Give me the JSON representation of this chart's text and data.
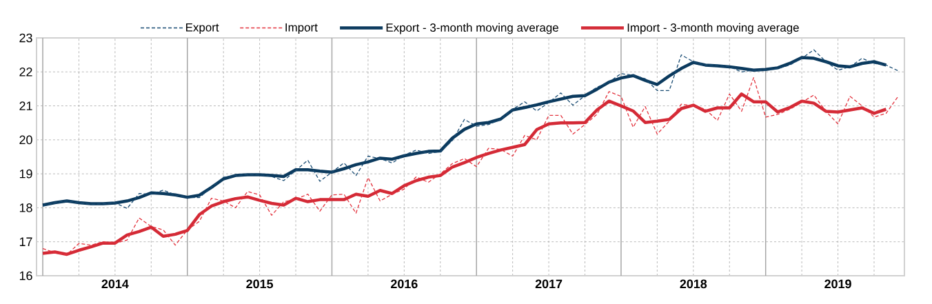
{
  "chart_data": {
    "type": "line",
    "x": [
      "2014-01",
      "2014-02",
      "2014-03",
      "2014-04",
      "2014-05",
      "2014-06",
      "2014-07",
      "2014-08",
      "2014-09",
      "2014-10",
      "2014-11",
      "2014-12",
      "2015-01",
      "2015-02",
      "2015-03",
      "2015-04",
      "2015-05",
      "2015-06",
      "2015-07",
      "2015-08",
      "2015-09",
      "2015-10",
      "2015-11",
      "2015-12",
      "2016-01",
      "2016-02",
      "2016-03",
      "2016-04",
      "2016-05",
      "2016-06",
      "2016-07",
      "2016-08",
      "2016-09",
      "2016-10",
      "2016-11",
      "2016-12",
      "2017-01",
      "2017-02",
      "2017-03",
      "2017-04",
      "2017-05",
      "2017-06",
      "2017-07",
      "2017-08",
      "2017-09",
      "2017-10",
      "2017-11",
      "2017-12",
      "2018-01",
      "2018-02",
      "2018-03",
      "2018-04",
      "2018-05",
      "2018-06",
      "2018-07",
      "2018-08",
      "2018-09",
      "2018-10",
      "2018-11",
      "2018-12",
      "2019-01",
      "2019-02",
      "2019-03",
      "2019-04",
      "2019-05",
      "2019-06",
      "2019-07",
      "2019-08",
      "2019-09",
      "2019-10",
      "2019-11",
      "2019-12"
    ],
    "series": [
      {
        "name": "Export",
        "color": "#174a72",
        "line_style": "dashed",
        "values": [
          18.05,
          18.15,
          18.2,
          18.15,
          18.1,
          18.12,
          18.15,
          17.98,
          18.42,
          18.4,
          18.52,
          18.38,
          18.3,
          18.3,
          18.6,
          18.9,
          18.95,
          18.98,
          18.97,
          18.92,
          18.8,
          19.1,
          19.4,
          18.78,
          19.05,
          19.32,
          18.95,
          19.52,
          19.45,
          19.32,
          19.55,
          19.7,
          19.6,
          19.65,
          19.98,
          20.6,
          20.4,
          20.45,
          20.6,
          20.9,
          21.12,
          20.85,
          21.1,
          21.38,
          21.02,
          21.3,
          21.55,
          21.7,
          21.95,
          21.9,
          21.8,
          21.45,
          21.45,
          22.5,
          22.3,
          22.2,
          22.2,
          22.15,
          22.0,
          22.05,
          22.05,
          22.1,
          22.2,
          22.4,
          22.65,
          22.3,
          22.05,
          22.15,
          22.4,
          22.25,
          22.2,
          22.03
        ]
      },
      {
        "name": "Import",
        "color": "#e3323d",
        "line_style": "dashed",
        "values": [
          16.8,
          16.68,
          16.62,
          16.95,
          16.9,
          17.0,
          16.96,
          17.05,
          17.7,
          17.45,
          17.35,
          16.9,
          17.35,
          17.6,
          18.28,
          18.2,
          18.0,
          18.48,
          18.38,
          17.78,
          18.18,
          18.25,
          18.4,
          17.9,
          18.38,
          18.4,
          17.84,
          18.89,
          18.2,
          18.4,
          18.55,
          18.91,
          18.75,
          19.0,
          19.3,
          19.45,
          19.21,
          19.75,
          19.72,
          19.52,
          20.13,
          20.0,
          20.72,
          20.72,
          20.17,
          20.45,
          20.75,
          21.42,
          21.28,
          20.37,
          20.98,
          20.17,
          20.55,
          21.05,
          21.0,
          20.9,
          20.57,
          21.35,
          20.84,
          21.83,
          20.67,
          20.75,
          20.9,
          21.1,
          21.32,
          20.84,
          20.47,
          21.28,
          21.0,
          20.67,
          20.78,
          21.28
        ]
      },
      {
        "name": "Export - 3-month moving average",
        "color": "#0b3a5e",
        "line_style": "solid",
        "values": [
          18.08,
          18.15,
          18.2,
          18.15,
          18.12,
          18.12,
          18.14,
          18.2,
          18.3,
          18.44,
          18.42,
          18.38,
          18.31,
          18.37,
          18.6,
          18.85,
          18.95,
          18.97,
          18.97,
          18.95,
          18.92,
          19.12,
          19.12,
          19.08,
          19.05,
          19.15,
          19.27,
          19.35,
          19.46,
          19.43,
          19.53,
          19.6,
          19.66,
          19.67,
          20.05,
          20.31,
          20.47,
          20.51,
          20.61,
          20.88,
          20.95,
          21.03,
          21.12,
          21.2,
          21.28,
          21.3,
          21.49,
          21.7,
          21.82,
          21.89,
          21.75,
          21.63,
          21.88,
          22.1,
          22.28,
          22.2,
          22.18,
          22.15,
          22.1,
          22.05,
          22.07,
          22.12,
          22.25,
          22.42,
          22.4,
          22.3,
          22.18,
          22.15,
          22.25,
          22.3,
          22.2,
          null
        ]
      },
      {
        "name": "Import - 3-month moving average",
        "color": "#d42a36",
        "line_style": "solid",
        "values": [
          16.66,
          16.7,
          16.63,
          16.75,
          16.85,
          16.96,
          16.96,
          17.2,
          17.3,
          17.43,
          17.16,
          17.22,
          17.33,
          17.8,
          18.05,
          18.18,
          18.27,
          18.32,
          18.22,
          18.13,
          18.08,
          18.28,
          18.18,
          18.24,
          18.24,
          18.24,
          18.4,
          18.34,
          18.51,
          18.42,
          18.65,
          18.8,
          18.9,
          18.95,
          19.2,
          19.33,
          19.48,
          19.6,
          19.7,
          19.78,
          19.86,
          20.3,
          20.47,
          20.5,
          20.5,
          20.51,
          20.88,
          21.14,
          21.0,
          20.85,
          20.51,
          20.55,
          20.6,
          20.92,
          21.02,
          20.84,
          20.94,
          20.94,
          21.35,
          21.12,
          21.12,
          20.82,
          20.95,
          21.14,
          21.08,
          20.84,
          20.82,
          20.88,
          20.94,
          20.78,
          20.9,
          null
        ]
      }
    ],
    "xlim": [
      "2013-12-16",
      "2019-12-17"
    ],
    "xticks": [
      {
        "value": "2014-07-01",
        "label": "2014"
      },
      {
        "value": "2015-07-01",
        "label": "2015"
      },
      {
        "value": "2016-07-01",
        "label": "2016"
      },
      {
        "value": "2017-07-01",
        "label": "2017"
      },
      {
        "value": "2018-07-01",
        "label": "2018"
      },
      {
        "value": "2019-07-01",
        "label": "2019"
      }
    ],
    "ylim": [
      16,
      23
    ],
    "yticks": [
      16,
      17,
      18,
      19,
      20,
      21,
      22,
      23
    ],
    "grid": true,
    "legend": "top"
  }
}
